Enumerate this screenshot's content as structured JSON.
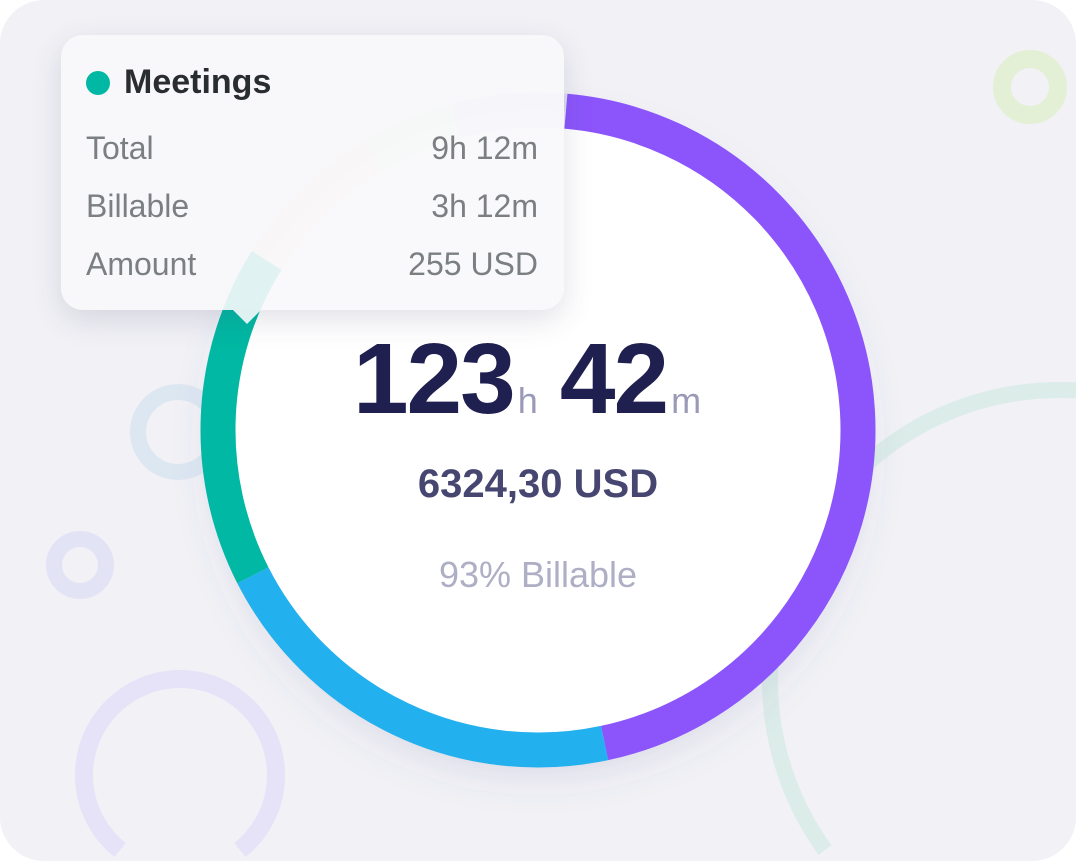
{
  "summary": {
    "hours": "123",
    "hours_unit": "h",
    "minutes": "42",
    "minutes_unit": "m",
    "amount": "6324,30 USD",
    "billable": "93%  Billable"
  },
  "tooltip": {
    "title": "Meetings",
    "color": "#00b8a3",
    "rows": [
      {
        "label": "Total",
        "value": "9h 12m"
      },
      {
        "label": "Billable",
        "value": "3h 12m"
      },
      {
        "label": "Amount",
        "value": "255 USD"
      }
    ]
  },
  "donut_segments": [
    {
      "color": "#8b55fb",
      "start_deg": 5,
      "end_deg": 168,
      "highlighted": true
    },
    {
      "color": "#22b0ef",
      "start_deg": 168,
      "end_deg": 243,
      "highlighted": true
    },
    {
      "color": "#00b8a3",
      "start_deg": 243,
      "end_deg": 302,
      "highlighted": true
    },
    {
      "color": "#f5c89a",
      "start_deg": 302,
      "end_deg": 329,
      "highlighted": false
    },
    {
      "color": "#bfe59a",
      "start_deg": 329,
      "end_deg": 345,
      "highlighted": false
    },
    {
      "color": "#b9bff5",
      "start_deg": 345,
      "end_deg": 365,
      "highlighted": false
    }
  ]
}
